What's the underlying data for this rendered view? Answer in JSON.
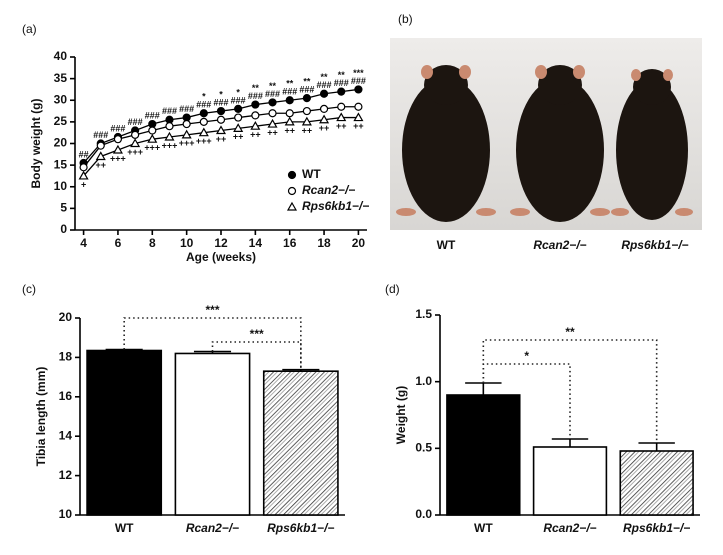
{
  "panels": [
    "(a)",
    "(b)",
    "(c)",
    "(d)"
  ],
  "photo": {
    "labels": [
      "WT",
      "Rcan2−/−",
      "Rps6kb1−/−"
    ]
  },
  "chart_data": [
    {
      "type": "line",
      "xlabel": "Age (weeks)",
      "ylabel": "Body weight (g)",
      "x": [
        4,
        5,
        6,
        7,
        8,
        9,
        10,
        11,
        12,
        13,
        14,
        15,
        16,
        17,
        18,
        19,
        20
      ],
      "xlim": [
        3.5,
        20.5
      ],
      "xticks": [
        4,
        6,
        8,
        10,
        12,
        14,
        16,
        18,
        20
      ],
      "ylim": [
        0,
        40
      ],
      "yticks": [
        0,
        5,
        10,
        15,
        20,
        25,
        30,
        35,
        40
      ],
      "legend": "lower right",
      "series": [
        {
          "name": "WT",
          "color": "#000000",
          "marker": "circle",
          "filled": true,
          "values": [
            15.5,
            20,
            21.5,
            23,
            24.5,
            25.5,
            26,
            27,
            27.5,
            28,
            29,
            29.5,
            30,
            30.5,
            31.5,
            32,
            32.5
          ]
        },
        {
          "name": "Rcan2−/−",
          "color": "#000000",
          "marker": "circle",
          "filled": false,
          "values": [
            14.5,
            19.5,
            21,
            22,
            23,
            24,
            24.5,
            25,
            25.5,
            26,
            26.5,
            27,
            27,
            27.5,
            28,
            28.5,
            28.5
          ]
        },
        {
          "name": "Rps6kb1−/−",
          "color": "#000000",
          "marker": "triangle",
          "filled": false,
          "values": [
            12.5,
            17,
            18.5,
            20,
            21,
            21.5,
            22,
            22.5,
            23,
            23.5,
            24,
            24.5,
            25,
            25,
            25.5,
            26,
            26
          ]
        }
      ],
      "hash_labels": [
        "##",
        "###",
        "###",
        "###",
        "###",
        "###",
        "###",
        "###",
        "###",
        "###",
        "###",
        "###",
        "###",
        "###",
        "###",
        "###",
        "###"
      ],
      "star_labels": [
        null,
        null,
        null,
        null,
        null,
        null,
        null,
        "*",
        "*",
        "*",
        "**",
        "**",
        "**",
        "**",
        "**",
        "**",
        "***"
      ],
      "plus_labels": [
        "+",
        "++",
        "+++",
        "+++",
        "+++",
        "+++",
        "+++",
        "+++",
        "++",
        "++",
        "++",
        "++",
        "++",
        "++",
        "++",
        "++",
        "++"
      ]
    },
    {
      "type": "bar",
      "ylabel": "Tibia length (mm)",
      "categories": [
        "WT",
        "Rcan2−/−",
        "Rps6kb1−/−"
      ],
      "values": [
        18.35,
        18.2,
        17.3
      ],
      "errors": [
        0.05,
        0.1,
        0.08
      ],
      "colors": [
        "#000000",
        "#ffffff",
        "hatch"
      ],
      "ylim": [
        10,
        20
      ],
      "yticks": [
        10,
        12,
        14,
        16,
        18,
        20
      ],
      "brackets": [
        {
          "from": 0,
          "to": 2,
          "label": "***"
        },
        {
          "from": 1,
          "to": 2,
          "label": "***"
        }
      ]
    },
    {
      "type": "bar",
      "ylabel": "Weight (g)",
      "categories": [
        "WT",
        "Rcan2−/−",
        "Rps6kb1−/−"
      ],
      "values": [
        0.9,
        0.51,
        0.48
      ],
      "errors": [
        0.09,
        0.06,
        0.06
      ],
      "colors": [
        "#000000",
        "#ffffff",
        "hatch"
      ],
      "ylim": [
        0,
        1.5
      ],
      "yticks": [
        {
          "value": 0,
          "label": "0.0"
        },
        0.5,
        {
          "value": 1,
          "label": "1.0"
        },
        1.5
      ],
      "brackets": [
        {
          "from": 0,
          "to": 2,
          "label": "**"
        },
        {
          "from": 0,
          "to": 1,
          "label": "*"
        }
      ]
    }
  ]
}
